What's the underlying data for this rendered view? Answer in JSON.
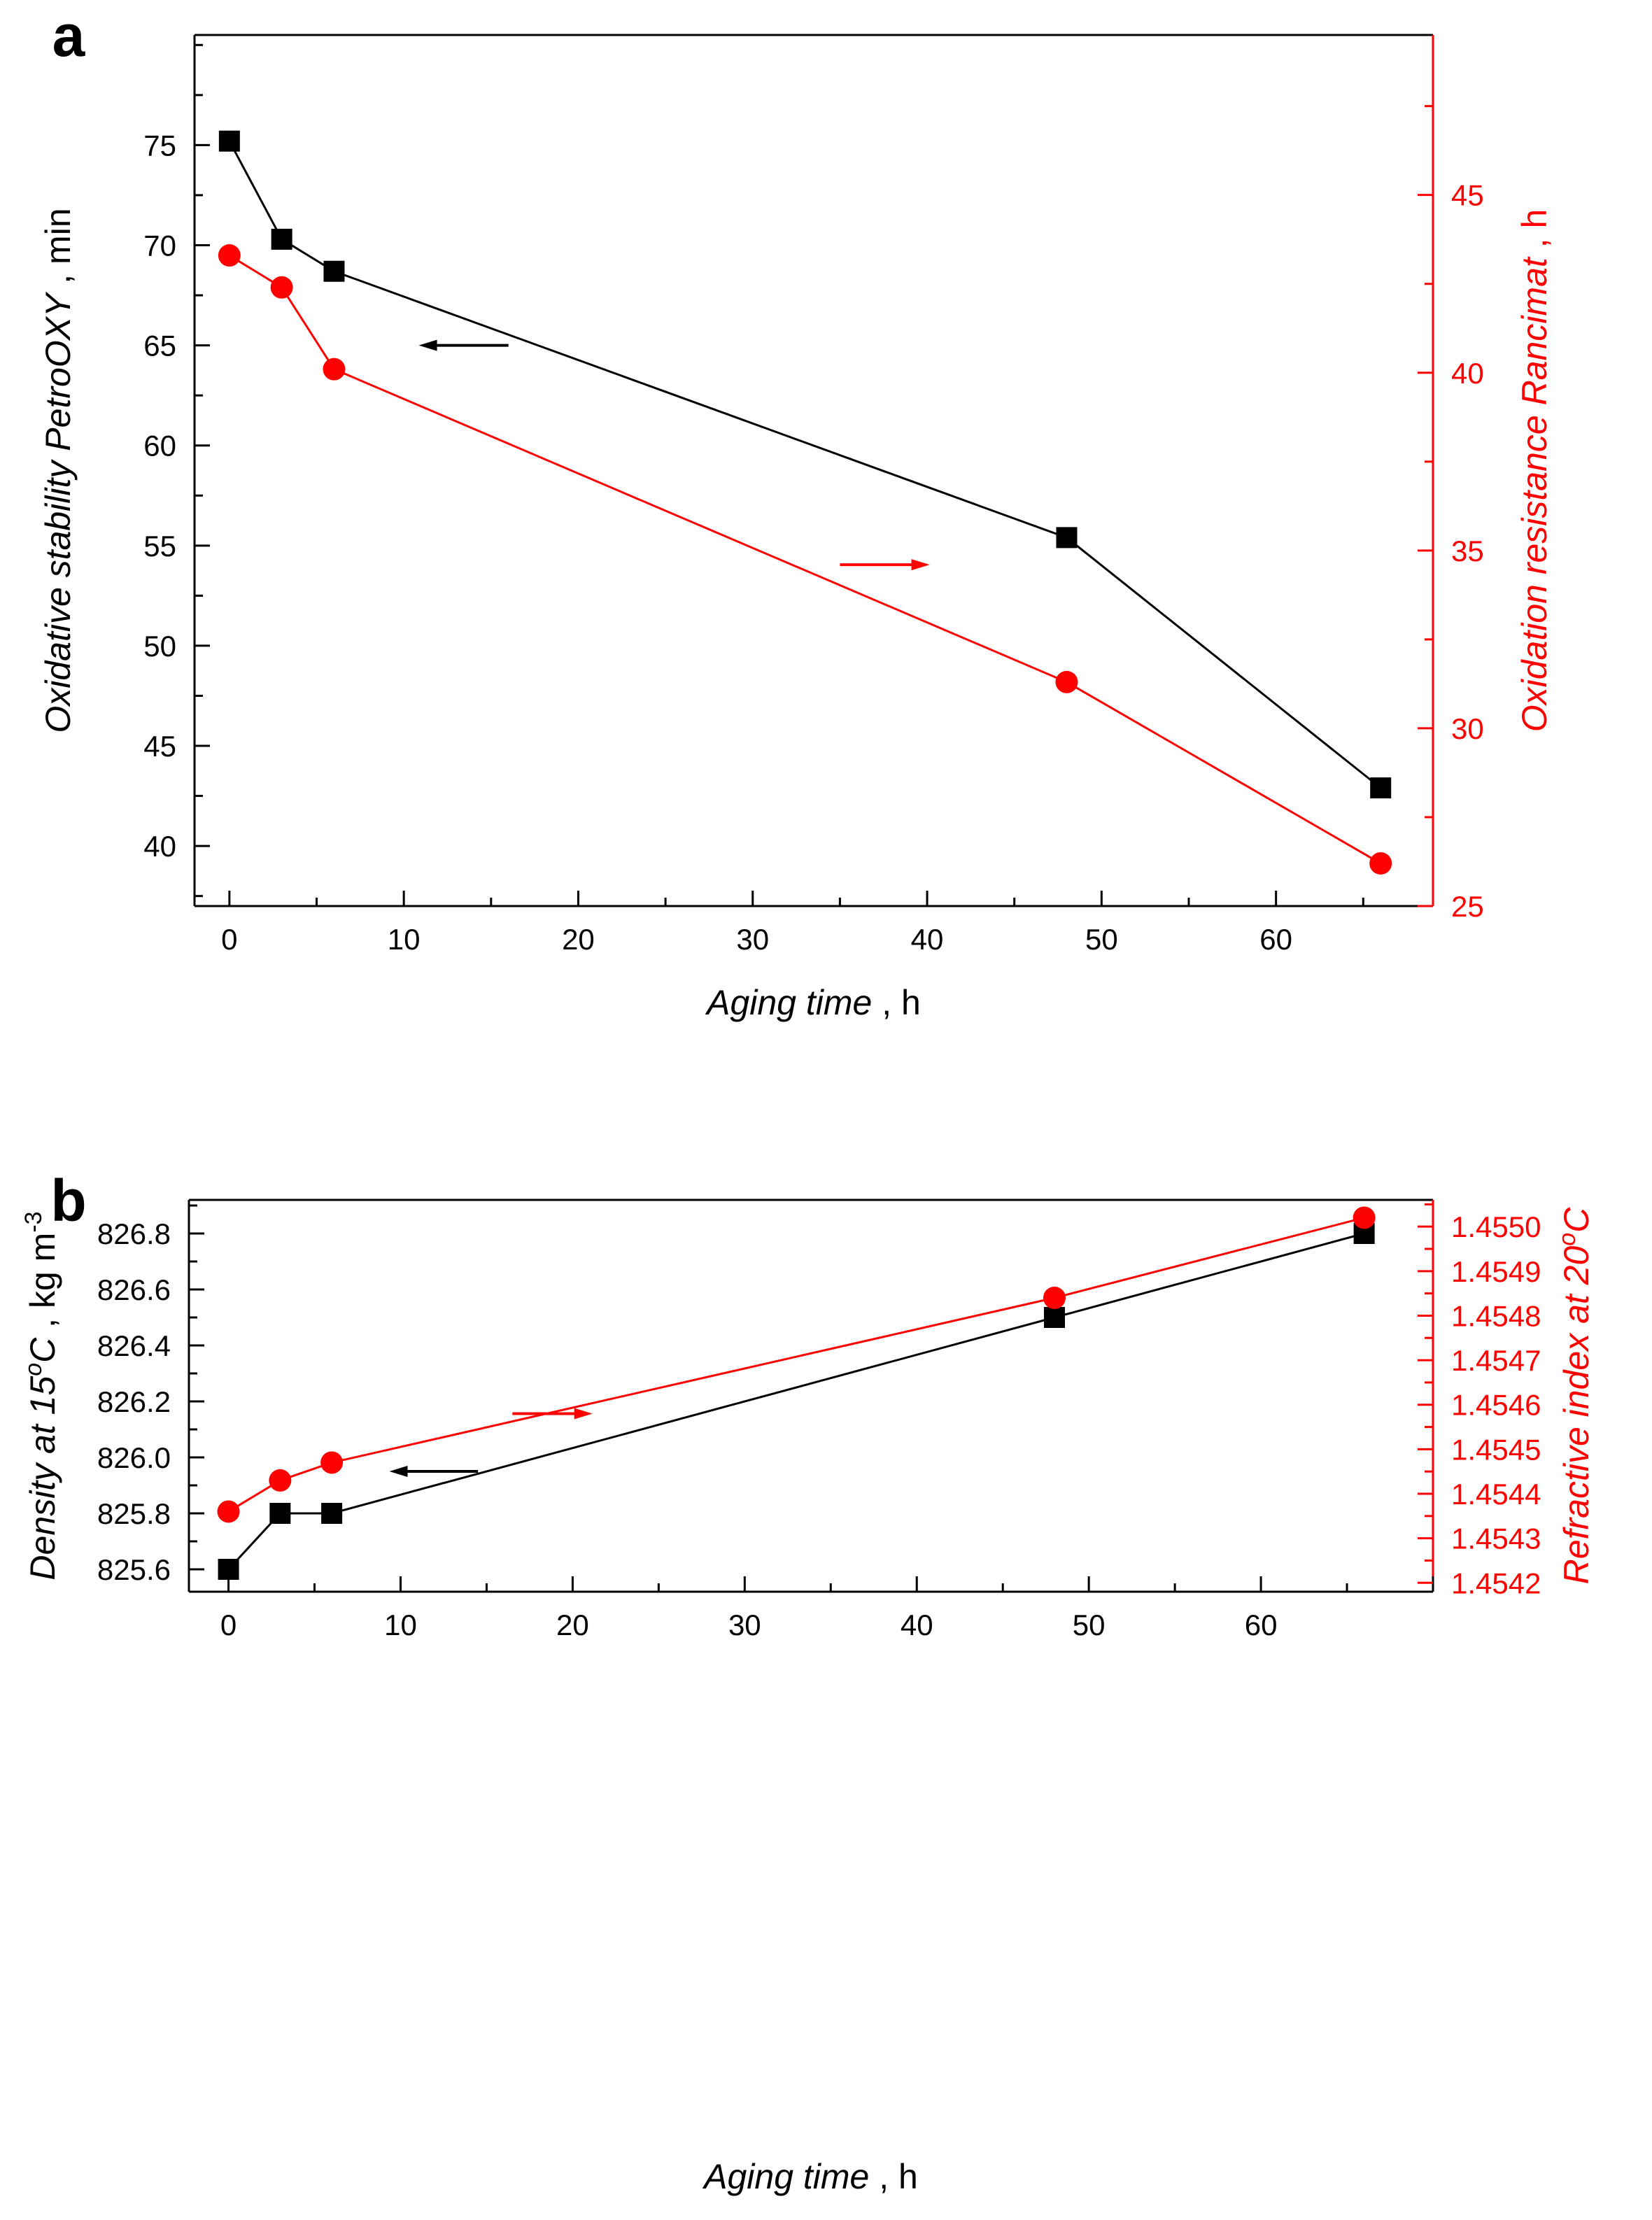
{
  "colors": {
    "left_series": "#000000",
    "right_series": "#ff0000",
    "axis": "#000000",
    "right_axis": "#ff0000"
  },
  "chart_data": [
    {
      "type": "line",
      "panel_label": "a",
      "x": [
        0,
        3,
        6,
        48,
        66
      ],
      "xlabel": {
        "main": "Aging time",
        "sep": " ,  ",
        "unit": "h"
      },
      "xlim": [
        -2,
        69
      ],
      "xticks": [
        0,
        10,
        20,
        30,
        40,
        50,
        60
      ],
      "left_axis": {
        "label": {
          "main": "Oxidative stability PetroOXY",
          "sep": " ,  ",
          "unit": "min"
        },
        "ylim": [
          37,
          80.5
        ],
        "ticks": [
          40,
          45,
          50,
          55,
          60,
          65,
          70,
          75
        ],
        "minor_step": 2.5,
        "decimals": 0
      },
      "right_axis": {
        "label": {
          "main": "Oxidation resistance Rancimat",
          "sep": " ,  ",
          "unit": "h"
        },
        "ylim": [
          25,
          49.5
        ],
        "ticks": [
          25,
          30,
          35,
          40,
          45
        ],
        "minor_step": 2.5,
        "decimals": 0
      },
      "series": [
        {
          "axis": "left",
          "marker": "square",
          "values": [
            75.2,
            70.3,
            68.7,
            55.4,
            42.9
          ]
        },
        {
          "axis": "right",
          "marker": "circle",
          "values": [
            43.3,
            42.4,
            40.1,
            31.3,
            26.2
          ]
        }
      ],
      "annotations": [
        {
          "type": "arrow",
          "direction": "left",
          "series_axis": "left",
          "x_from": 16,
          "x_to": 11.5,
          "y": 65
        },
        {
          "type": "arrow",
          "direction": "right",
          "series_axis": "right",
          "x_from": 35,
          "x_to": 39.5,
          "y": 34.6
        }
      ]
    },
    {
      "type": "line",
      "panel_label": "b",
      "x": [
        0,
        3,
        6,
        48,
        66
      ],
      "xlabel": {
        "main": "Aging time",
        "sep": " ,  ",
        "unit": "h"
      },
      "xlim": [
        -2.3,
        70
      ],
      "xticks": [
        0,
        10,
        20,
        30,
        40,
        50,
        60
      ],
      "left_axis": {
        "label": {
          "main": "Density at 15",
          "sup": "o",
          "main2": "C",
          "sep": " ,  ",
          "unit": "kg m",
          "unit_sup": "-3"
        },
        "ylim": [
          825.52,
          826.92
        ],
        "ticks": [
          825.6,
          825.8,
          826.0,
          826.2,
          826.4,
          826.6,
          826.8
        ],
        "minor_step": 0.1,
        "decimals": 1
      },
      "right_axis": {
        "label": {
          "main": "Refractive index at 20",
          "sup": "o",
          "main2": "C"
        },
        "ylim": [
          1.45418,
          1.45506
        ],
        "ticks": [
          1.4542,
          1.4543,
          1.4544,
          1.4545,
          1.4546,
          1.4547,
          1.4548,
          1.4549,
          1.455
        ],
        "minor_step": 5e-05,
        "decimals": 4
      },
      "series": [
        {
          "axis": "left",
          "marker": "square",
          "values": [
            825.6,
            825.8,
            825.8,
            826.5,
            826.8
          ]
        },
        {
          "axis": "right",
          "marker": "circle",
          "values": [
            1.45436,
            1.45443,
            1.45447,
            1.45484,
            1.45502
          ]
        }
      ],
      "annotations": [
        {
          "type": "arrow",
          "direction": "left",
          "series_axis": "left",
          "x_from": 14.5,
          "x_to": 10,
          "y": 825.95
        },
        {
          "type": "arrow",
          "direction": "right",
          "series_axis": "right",
          "x_from": 16.5,
          "x_to": 20.5,
          "y": 1.45458
        }
      ]
    }
  ]
}
